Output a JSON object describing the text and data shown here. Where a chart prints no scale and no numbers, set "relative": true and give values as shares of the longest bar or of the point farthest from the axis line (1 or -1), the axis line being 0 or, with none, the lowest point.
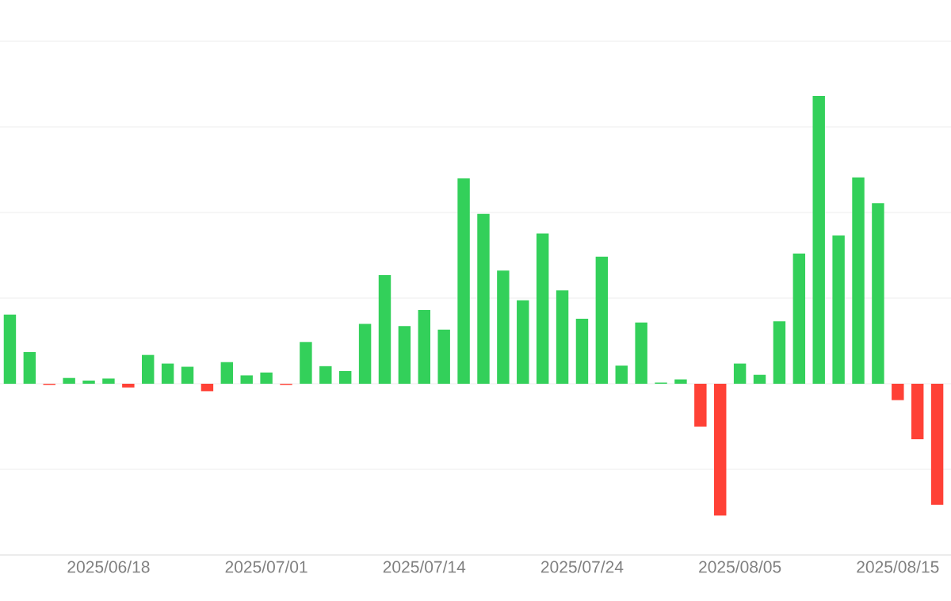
{
  "chart_data": {
    "type": "bar",
    "relative": true,
    "grid": "y",
    "categories": [
      null,
      null,
      null,
      null,
      null,
      "2025/06/18",
      null,
      null,
      null,
      null,
      null,
      null,
      null,
      "2025/07/01",
      null,
      null,
      null,
      null,
      null,
      null,
      null,
      "2025/07/14",
      null,
      null,
      null,
      null,
      null,
      null,
      null,
      "2025/07/24",
      null,
      null,
      null,
      null,
      null,
      null,
      null,
      "2025/08/05",
      null,
      null,
      null,
      null,
      null,
      null,
      null,
      "2025/08/15",
      null,
      null
    ],
    "values": [
      0.24,
      0.11,
      -0.004,
      0.02,
      0.011,
      0.018,
      -0.013,
      0.1,
      0.07,
      0.059,
      -0.026,
      0.075,
      0.029,
      0.039,
      -0.004,
      0.145,
      0.061,
      0.044,
      0.208,
      0.377,
      0.2,
      0.256,
      0.188,
      0.713,
      0.59,
      0.393,
      0.29,
      0.522,
      0.324,
      0.226,
      0.441,
      0.063,
      0.213,
      0.004,
      0.015,
      -0.149,
      -0.458,
      0.07,
      0.031,
      0.217,
      0.452,
      1,
      0.515,
      0.717,
      0.627,
      -0.057,
      -0.193,
      -0.421
    ],
    "colors": [
      "#33d05a",
      "#33d05a",
      "#ff4136",
      "#33d05a",
      "#33d05a",
      "#33d05a",
      "#ff4136",
      "#33d05a",
      "#33d05a",
      "#33d05a",
      "#ff4136",
      "#33d05a",
      "#33d05a",
      "#33d05a",
      "#ff4136",
      "#33d05a",
      "#33d05a",
      "#33d05a",
      "#33d05a",
      "#33d05a",
      "#33d05a",
      "#33d05a",
      "#33d05a",
      "#33d05a",
      "#33d05a",
      "#33d05a",
      "#33d05a",
      "#33d05a",
      "#33d05a",
      "#33d05a",
      "#33d05a",
      "#33d05a",
      "#33d05a",
      "#33d05a",
      "#33d05a",
      "#ff4136",
      "#ff4136",
      "#33d05a",
      "#33d05a",
      "#33d05a",
      "#33d05a",
      "#33d05a",
      "#33d05a",
      "#33d05a",
      "#33d05a",
      "#ff4136",
      "#ff4136",
      "#ff4136"
    ]
  }
}
